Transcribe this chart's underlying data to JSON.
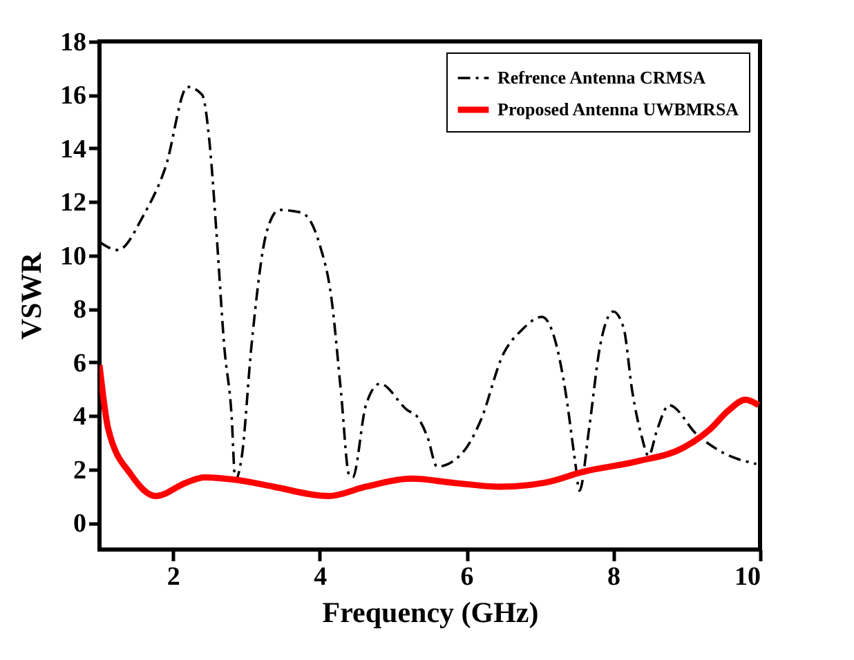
{
  "chart_data": {
    "type": "line",
    "xlabel": "Frequency (GHz)",
    "ylabel": "VSWR",
    "xlim": [
      1,
      10
    ],
    "ylim": [
      -1,
      18
    ],
    "xticks": [
      2,
      4,
      6,
      8,
      10
    ],
    "yticks": [
      0,
      2,
      4,
      6,
      8,
      10,
      12,
      14,
      16,
      18
    ],
    "grid": false,
    "legend": "top right",
    "series": [
      {
        "name": "Refrence Antenna CRMSA",
        "color": "#000000",
        "line_style": "dashdot",
        "x": [
          1.0,
          1.25,
          1.6,
          1.9,
          2.2,
          2.4,
          2.5,
          2.6,
          2.7,
          2.8,
          2.85,
          2.94,
          3.07,
          3.28,
          3.45,
          3.75,
          4.0,
          4.16,
          4.29,
          4.4,
          4.45,
          4.63,
          4.82,
          5.2,
          5.32,
          5.47,
          5.6,
          5.94,
          6.19,
          6.5,
          6.75,
          7.03,
          7.2,
          7.35,
          7.48,
          7.54,
          7.67,
          7.82,
          8.0,
          8.14,
          8.26,
          8.39,
          8.48,
          8.6,
          8.76,
          9.14,
          9.51,
          9.95
        ],
        "values": [
          10.5,
          10.2,
          11.5,
          13.3,
          16.3,
          16.0,
          14.2,
          10.6,
          6.6,
          4.0,
          1.6,
          2.5,
          6.6,
          10.9,
          11.7,
          11.6,
          10.4,
          8.4,
          4.9,
          1.8,
          1.7,
          4.4,
          5.2,
          4.2,
          4.0,
          3.2,
          2.1,
          2.6,
          3.8,
          6.3,
          7.2,
          7.7,
          6.9,
          4.9,
          2.3,
          1.2,
          3.5,
          6.6,
          7.9,
          7.3,
          4.9,
          3.2,
          2.5,
          3.5,
          4.4,
          3.3,
          2.6,
          2.2
        ]
      },
      {
        "name": "Proposed Antenna UWBMRSA",
        "color": "#ff0000",
        "line_style": "solid",
        "x": [
          1.0,
          1.12,
          1.43,
          1.77,
          2.18,
          2.43,
          2.88,
          3.37,
          4.12,
          4.63,
          5.25,
          5.81,
          6.45,
          7.07,
          7.58,
          8.33,
          8.95,
          9.32,
          9.57,
          9.8,
          9.98
        ],
        "values": [
          5.9,
          3.5,
          1.8,
          1.0,
          1.5,
          1.7,
          1.6,
          1.35,
          1.0,
          1.35,
          1.65,
          1.5,
          1.35,
          1.5,
          1.9,
          2.3,
          2.8,
          3.5,
          4.2,
          4.6,
          4.4
        ]
      }
    ]
  }
}
